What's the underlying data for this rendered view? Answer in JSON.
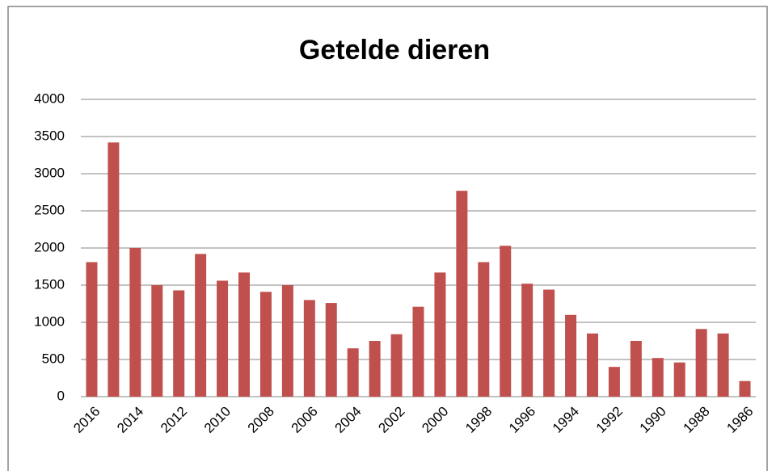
{
  "chart_data": {
    "type": "bar",
    "title": "Getelde dieren",
    "categories": [
      "2016",
      null,
      "2014",
      null,
      "2012",
      null,
      "2010",
      null,
      "2008",
      null,
      "2006",
      null,
      "2004",
      null,
      "2002",
      null,
      "2000",
      null,
      "1998",
      null,
      "1996",
      null,
      "1994",
      null,
      "1992",
      null,
      "1990",
      null,
      "1988",
      null,
      "1986"
    ],
    "values": [
      1810,
      3420,
      2000,
      1500,
      1430,
      1920,
      1560,
      1670,
      1410,
      1500,
      1300,
      1260,
      650,
      750,
      840,
      1210,
      1670,
      2770,
      1810,
      2030,
      1520,
      1440,
      1100,
      850,
      400,
      750,
      520,
      460,
      910,
      850,
      210
    ],
    "color": "#c0504d",
    "ylim": [
      0,
      4000
    ],
    "yticks": [
      0,
      500,
      1000,
      1500,
      2000,
      2500,
      3000,
      3500,
      4000
    ],
    "grid": true
  }
}
